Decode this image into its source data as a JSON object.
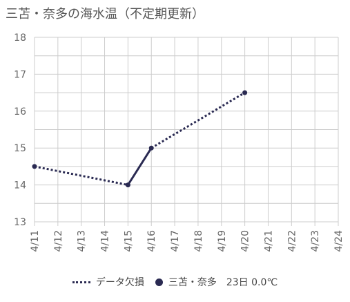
{
  "title": "三苫・奈多の海水温（不定期更新）",
  "colors": {
    "series": "#2a2a52",
    "grid": "#cccccc",
    "text": "#666666"
  },
  "legend": {
    "missing_label": "データ欠損",
    "series_label": "三苫・奈多　23日 0.0℃"
  },
  "chart_data": {
    "type": "line",
    "title": "三苫・奈多の海水温（不定期更新）",
    "x_categories": [
      "4/11",
      "4/12",
      "4/13",
      "4/14",
      "4/15",
      "4/16",
      "4/17",
      "4/18",
      "4/19",
      "4/20",
      "4/21",
      "4/22",
      "4/23",
      "4/24"
    ],
    "ylim": [
      13,
      18
    ],
    "yticks": [
      13,
      14,
      15,
      16,
      17,
      18
    ],
    "grid": true,
    "legend_position": "bottom",
    "series": [
      {
        "name": "三苫・奈多",
        "points": [
          {
            "x": "4/11",
            "y": 14.5
          },
          {
            "x": "4/15",
            "y": 14.0
          },
          {
            "x": "4/16",
            "y": 15.0
          },
          {
            "x": "4/20",
            "y": 16.5
          }
        ],
        "solid_segments": [
          [
            "4/15",
            "4/16"
          ]
        ],
        "dotted_segments": [
          [
            "4/11",
            "4/15"
          ],
          [
            "4/16",
            "4/20"
          ]
        ]
      }
    ],
    "dotted_series_name": "データ欠損"
  }
}
